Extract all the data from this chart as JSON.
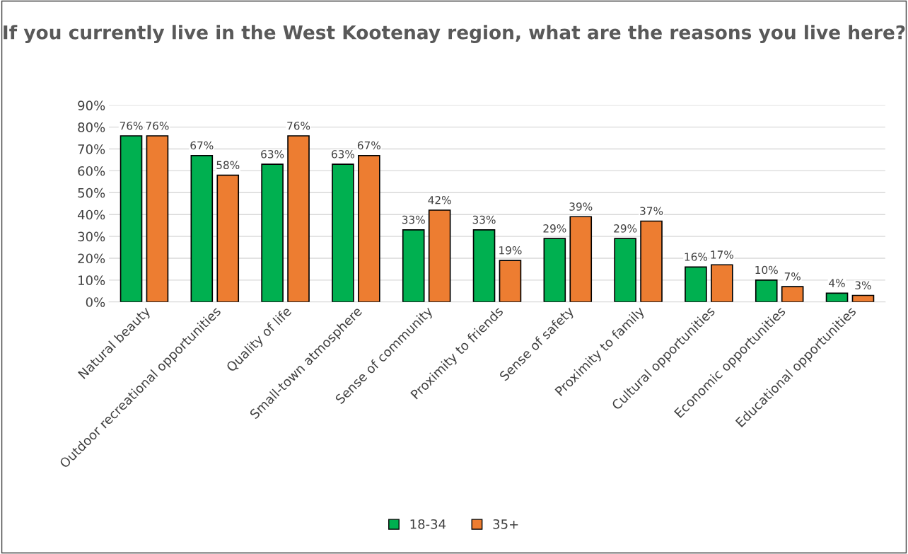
{
  "chart_data": {
    "type": "bar",
    "title": "If you currently live in the West Kootenay region, what are the reasons you live here?",
    "categories": [
      "Natural beauty",
      "Outdoor recreational opportunities",
      "Quality of life",
      "Small-town atmosphere",
      "Sense of community",
      "Proximity to friends",
      "Sense of safety",
      "Proximity to family",
      "Cultural opportunities",
      "Economic opportunities",
      "Educational opportunities"
    ],
    "series": [
      {
        "name": "18-34",
        "color": "#00b050",
        "values": [
          76,
          67,
          63,
          63,
          33,
          33,
          29,
          29,
          16,
          10,
          4
        ],
        "value_labels": [
          "76%",
          "67%",
          "63%",
          "63%",
          "33%",
          "33%",
          "29%",
          "29%",
          "16%",
          "10%",
          "4%"
        ]
      },
      {
        "name": "35+",
        "color": "#ed7d31",
        "values": [
          76,
          58,
          76,
          67,
          42,
          19,
          39,
          37,
          17,
          7,
          3
        ],
        "value_labels": [
          "76%",
          "58%",
          "76%",
          "67%",
          "42%",
          "19%",
          "39%",
          "37%",
          "17%",
          "7%",
          "3%"
        ]
      }
    ],
    "ylim": [
      0,
      90
    ],
    "yticks": [
      {
        "value": 0,
        "label": "0%"
      },
      {
        "value": 10,
        "label": "10%"
      },
      {
        "value": 20,
        "label": "20%"
      },
      {
        "value": 30,
        "label": "30%"
      },
      {
        "value": 40,
        "label": "40%"
      },
      {
        "value": 50,
        "label": "50%"
      },
      {
        "value": 60,
        "label": "60%"
      },
      {
        "value": 70,
        "label": "70%"
      },
      {
        "value": 80,
        "label": "80%"
      },
      {
        "value": 90,
        "label": "90%"
      }
    ],
    "grid": "y",
    "legend": "bottom"
  }
}
